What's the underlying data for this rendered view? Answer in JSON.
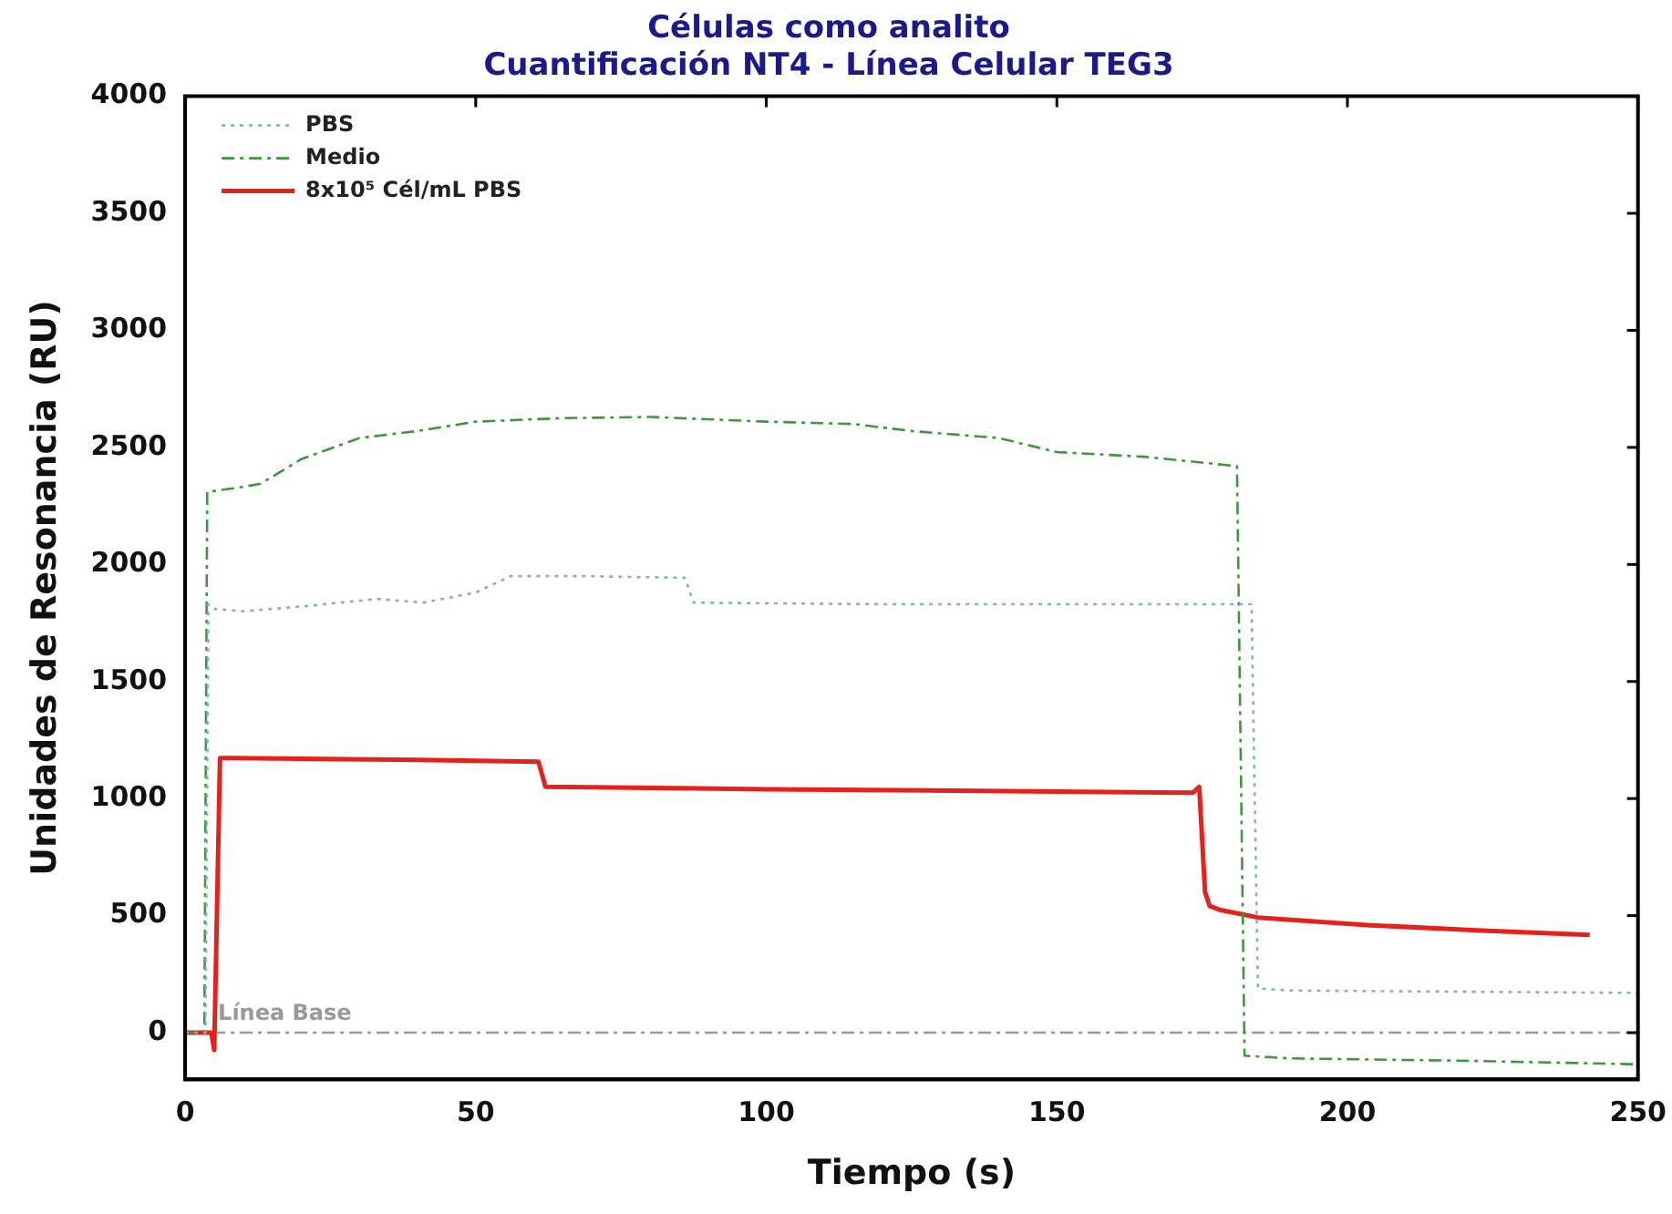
{
  "chart_data": {
    "type": "line",
    "title": [
      "Células como analito",
      "Cuantificación NT4 - Línea Celular TEG3"
    ],
    "xlabel": "Tiempo (s)",
    "ylabel": "Unidades de Resonancia (RU)",
    "xlim": [
      0,
      250
    ],
    "xticks": [
      0,
      50,
      100,
      150,
      200,
      250
    ],
    "ylim": [
      -200,
      4000
    ],
    "yticks": [
      0,
      500,
      1000,
      1500,
      2000,
      2500,
      3000,
      3500,
      4000
    ],
    "grid": false,
    "legend": "top left",
    "marker": "none",
    "ref_lines": [
      {
        "axis": "y",
        "value": 0,
        "label": "Línea Base",
        "color": "#999999",
        "line_style": "dashed"
      }
    ],
    "series": [
      {
        "name": "PBS",
        "color": "#7fb2c4",
        "line_style": "dotted",
        "x": [
          0,
          3.5,
          4,
          5,
          10,
          20,
          33,
          41,
          50,
          56,
          69,
          86,
          87.5,
          120,
          160,
          183.5,
          184.6,
          190,
          220,
          250
        ],
        "values": [
          0,
          0,
          1830,
          1810,
          1800,
          1820,
          1853,
          1837,
          1880,
          1950,
          1950,
          1943,
          1837,
          1830,
          1830,
          1830,
          189,
          180,
          175,
          170
        ]
      },
      {
        "name": "Medio",
        "color": "#3a9a3a",
        "line_style": "dashed",
        "x": [
          0,
          3.3,
          3.8,
          9.6,
          13,
          20,
          30,
          40,
          50,
          65,
          80,
          100,
          115,
          125,
          140,
          150,
          165,
          181,
          182.3,
          190,
          220,
          250
        ],
        "values": [
          0,
          0,
          2310,
          2330,
          2345,
          2450,
          2540,
          2570,
          2610,
          2625,
          2630,
          2610,
          2600,
          2570,
          2540,
          2480,
          2460,
          2420,
          -98,
          -110,
          -120,
          -135
        ]
      },
      {
        "name": "8x10⁵ Cél/mL PBS",
        "color": "#e8201c",
        "line_style": "solid",
        "x": [
          0,
          4.5,
          5,
          6,
          20,
          40,
          60.8,
          62,
          100,
          150,
          173.4,
          174.5,
          175.5,
          176.3,
          178,
          184.6,
          204,
          224,
          241.7
        ],
        "values": [
          0,
          0,
          -74,
          1173,
          1170,
          1165,
          1157,
          1050,
          1040,
          1030,
          1025,
          1050,
          600,
          541,
          525,
          492,
          459,
          435,
          418
        ]
      }
    ]
  }
}
